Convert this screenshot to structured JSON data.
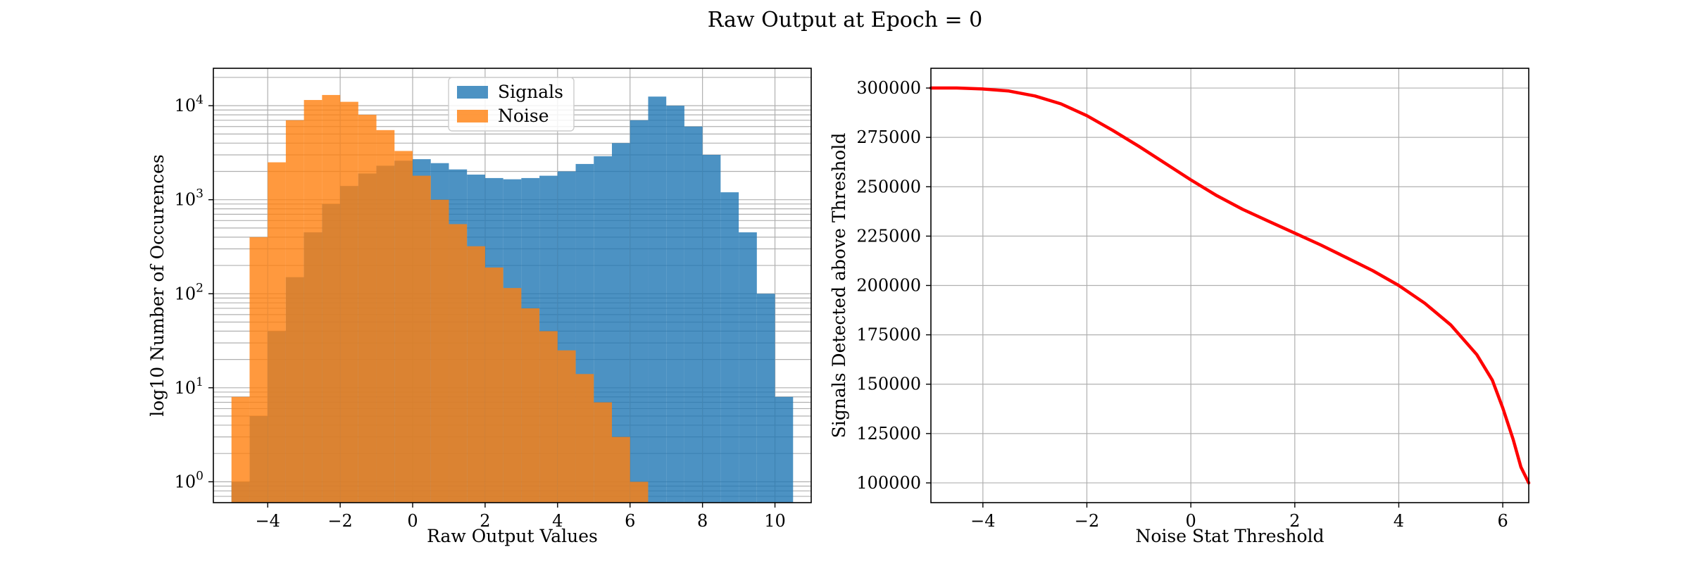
{
  "figure": {
    "suptitle": "Raw Output at Epoch = 0"
  },
  "chart_data": [
    {
      "type": "bar",
      "subtype": "histogram",
      "title": "",
      "xlabel": "Raw Output Values",
      "ylabel": "log10 Number of Occurences",
      "xlim": [
        -5.5,
        11
      ],
      "ylim": [
        0.6,
        25000
      ],
      "yscale": "log",
      "grid": true,
      "legend_placement": "upper-center",
      "x_ticks": [
        -4,
        -2,
        0,
        2,
        4,
        6,
        8,
        10
      ],
      "x_tick_labels": [
        "−4",
        "−2",
        "0",
        "2",
        "4",
        "6",
        "8",
        "10"
      ],
      "y_ticks": [
        1,
        10,
        100,
        1000,
        10000
      ],
      "y_tick_labels": [
        {
          "base": "10",
          "exp": "0"
        },
        {
          "base": "10",
          "exp": "1"
        },
        {
          "base": "10",
          "exp": "2"
        },
        {
          "base": "10",
          "exp": "3"
        },
        {
          "base": "10",
          "exp": "4"
        }
      ],
      "series": [
        {
          "name": "Signals",
          "color": "#1f77b4",
          "opacity": 0.8,
          "bins": [
            [
              -5.0,
              1
            ],
            [
              -4.5,
              5
            ],
            [
              -4.0,
              40
            ],
            [
              -3.5,
              150
            ],
            [
              -3.0,
              450
            ],
            [
              -2.5,
              900
            ],
            [
              -2.0,
              1400
            ],
            [
              -1.5,
              1900
            ],
            [
              -1.0,
              2300
            ],
            [
              -0.5,
              2600
            ],
            [
              0.0,
              2700
            ],
            [
              0.5,
              2450
            ],
            [
              1.0,
              2100
            ],
            [
              1.5,
              1850
            ],
            [
              2.0,
              1700
            ],
            [
              2.5,
              1650
            ],
            [
              3.0,
              1700
            ],
            [
              3.5,
              1800
            ],
            [
              4.0,
              2000
            ],
            [
              4.5,
              2400
            ],
            [
              5.0,
              2900
            ],
            [
              5.5,
              4000
            ],
            [
              6.0,
              7000
            ],
            [
              6.5,
              12500
            ],
            [
              7.0,
              10000
            ],
            [
              7.5,
              6000
            ],
            [
              8.0,
              3000
            ],
            [
              8.5,
              1200
            ],
            [
              9.0,
              450
            ],
            [
              9.5,
              100
            ],
            [
              10.0,
              8
            ]
          ]
        },
        {
          "name": "Noise",
          "color": "#ff7f0e",
          "opacity": 0.8,
          "bins": [
            [
              -5.0,
              8
            ],
            [
              -4.5,
              400
            ],
            [
              -4.0,
              2500
            ],
            [
              -3.5,
              7000
            ],
            [
              -3.0,
              11500
            ],
            [
              -2.5,
              13000
            ],
            [
              -2.0,
              11000
            ],
            [
              -1.5,
              8000
            ],
            [
              -1.0,
              5500
            ],
            [
              -0.5,
              3300
            ],
            [
              0.0,
              1800
            ],
            [
              0.5,
              1000
            ],
            [
              1.0,
              550
            ],
            [
              1.5,
              320
            ],
            [
              2.0,
              190
            ],
            [
              2.5,
              115
            ],
            [
              3.0,
              70
            ],
            [
              3.5,
              40
            ],
            [
              4.0,
              25
            ],
            [
              4.5,
              14
            ],
            [
              5.0,
              7
            ],
            [
              5.5,
              3
            ],
            [
              6.0,
              1
            ]
          ]
        }
      ]
    },
    {
      "type": "line",
      "title": "",
      "xlabel": "Noise Stat Threshold",
      "ylabel": "Signals Detected above Threshold",
      "xlim": [
        -5,
        6.5
      ],
      "ylim": [
        90000,
        310000
      ],
      "grid": true,
      "x_ticks": [
        -4,
        -2,
        0,
        2,
        4,
        6
      ],
      "x_tick_labels": [
        "−4",
        "−2",
        "0",
        "2",
        "4",
        "6"
      ],
      "y_ticks": [
        100000,
        125000,
        150000,
        175000,
        200000,
        225000,
        250000,
        275000,
        300000
      ],
      "y_tick_labels": [
        "100000",
        "125000",
        "150000",
        "175000",
        "200000",
        "225000",
        "250000",
        "275000",
        "300000"
      ],
      "series": [
        {
          "name": "",
          "color": "#ff0000",
          "x": [
            -5.0,
            -4.5,
            -4.0,
            -3.5,
            -3.0,
            -2.5,
            -2.0,
            -1.5,
            -1.0,
            -0.5,
            0.0,
            0.5,
            1.0,
            1.5,
            2.0,
            2.5,
            3.0,
            3.5,
            4.0,
            4.5,
            5.0,
            5.5,
            5.8,
            6.0,
            6.2,
            6.35,
            6.5
          ],
          "y": [
            300000,
            300000,
            299500,
            298500,
            296000,
            292000,
            286000,
            278500,
            270500,
            262000,
            253500,
            245500,
            238500,
            232500,
            226500,
            220500,
            214000,
            207500,
            200000,
            191000,
            180000,
            165000,
            152000,
            138000,
            122000,
            108000,
            100000
          ]
        }
      ]
    }
  ]
}
